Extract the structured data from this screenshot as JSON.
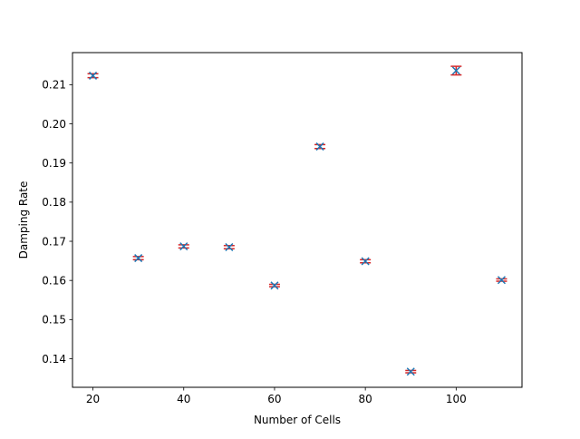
{
  "chart_data": {
    "type": "scatter",
    "title": "",
    "xlabel": "Number of Cells",
    "ylabel": "Damping Rate",
    "xlim": [
      15.5,
      114.5
    ],
    "ylim": [
      0.1327,
      0.2182
    ],
    "xticks": [
      20,
      40,
      60,
      80,
      100
    ],
    "xtick_labels": [
      "20",
      "40",
      "60",
      "80",
      "100"
    ],
    "yticks": [
      0.14,
      0.15,
      0.16,
      0.17,
      0.18,
      0.19,
      0.2,
      0.21
    ],
    "ytick_labels": [
      "0.14",
      "0.15",
      "0.16",
      "0.17",
      "0.18",
      "0.19",
      "0.20",
      "0.21"
    ],
    "grid": false,
    "series": [
      {
        "marker": "x",
        "color": "#1f77b4",
        "errorbar_color": "#d62728",
        "x": [
          20,
          30,
          40,
          50,
          60,
          70,
          80,
          90,
          100,
          110
        ],
        "y": [
          0.2123,
          0.1657,
          0.1687,
          0.1685,
          0.1587,
          0.1942,
          0.1649,
          0.1367,
          0.2136,
          0.1601
        ],
        "yerr": [
          0.0005,
          0.0004,
          0.0004,
          0.0004,
          0.0003,
          0.0005,
          0.0004,
          0.0003,
          0.0011,
          0.0003
        ]
      }
    ]
  }
}
